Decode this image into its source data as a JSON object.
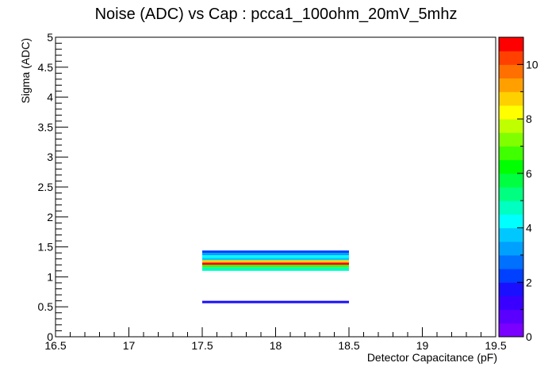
{
  "chart_data": {
    "type": "heatmap",
    "title": "Noise (ADC) vs Cap : pcca1_100ohm_20mV_5mhz",
    "xlabel": "Detector Capacitance (pF)",
    "ylabel": "Sigma (ADC)",
    "xlim": [
      16.5,
      19.5
    ],
    "ylim": [
      0,
      5
    ],
    "x_ticks": [
      "16.5",
      "17",
      "17.5",
      "18",
      "18.5",
      "19",
      "19.5"
    ],
    "y_ticks": [
      "0",
      "0.5",
      "1",
      "1.5",
      "2",
      "2.5",
      "3",
      "3.5",
      "4",
      "4.5",
      "5"
    ],
    "grid": false,
    "cells": [
      {
        "x": [
          17.5,
          18.5
        ],
        "y": [
          0.56,
          0.6
        ],
        "value": 1.5
      },
      {
        "x": [
          17.5,
          18.5
        ],
        "y": [
          1.1,
          1.16
        ],
        "value": 4.5
      },
      {
        "x": [
          17.5,
          18.5
        ],
        "y": [
          1.16,
          1.2
        ],
        "value": 6.5
      },
      {
        "x": [
          17.5,
          18.5
        ],
        "y": [
          1.2,
          1.24
        ],
        "value": 11
      },
      {
        "x": [
          17.5,
          18.5
        ],
        "y": [
          1.24,
          1.28
        ],
        "value": 8.5
      },
      {
        "x": [
          17.5,
          18.5
        ],
        "y": [
          1.28,
          1.32
        ],
        "value": 3.5
      },
      {
        "x": [
          17.5,
          18.5
        ],
        "y": [
          1.32,
          1.36
        ],
        "value": 4
      },
      {
        "x": [
          17.5,
          18.5
        ],
        "y": [
          1.36,
          1.4
        ],
        "value": 3
      },
      {
        "x": [
          17.5,
          18.5
        ],
        "y": [
          1.4,
          1.44
        ],
        "value": 2
      }
    ],
    "colorbar": {
      "min": 0,
      "max": 11,
      "ticks": [
        "0",
        "2",
        "4",
        "6",
        "8",
        "10"
      ],
      "palette": [
        "#7a00ff",
        "#5a00ff",
        "#3a00ff",
        "#1a10ff",
        "#0040ff",
        "#0070ff",
        "#00a0ff",
        "#00c8ff",
        "#00ffff",
        "#00ffc0",
        "#00ff80",
        "#00ff40",
        "#00ff00",
        "#40ff00",
        "#80ff00",
        "#c0ff00",
        "#ffff00",
        "#ffd000",
        "#ffa000",
        "#ff7000",
        "#ff4000",
        "#ff0000"
      ]
    }
  }
}
